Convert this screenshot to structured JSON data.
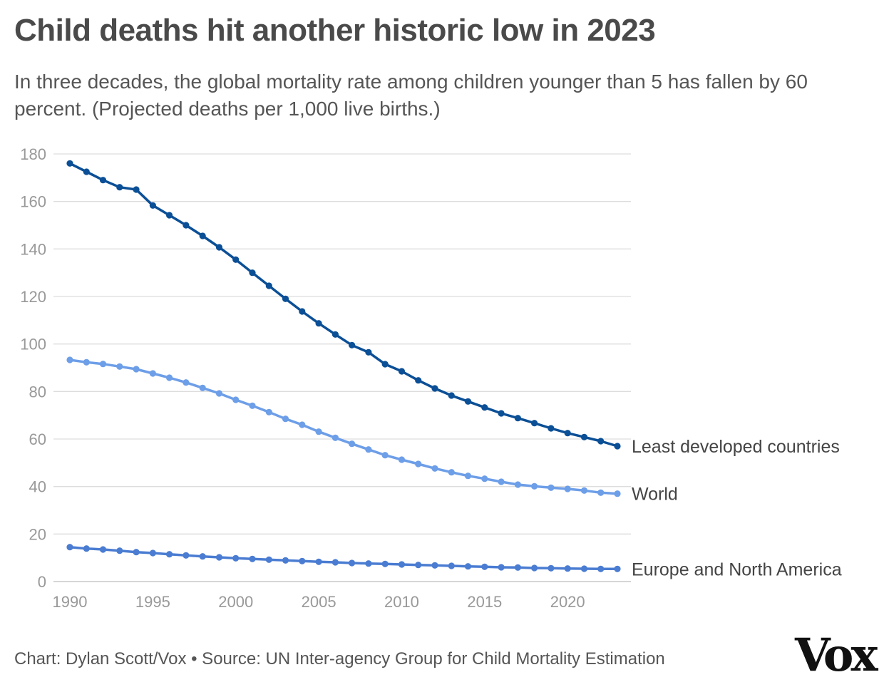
{
  "chart_data": {
    "type": "line",
    "title": "Child deaths hit another historic low in 2023",
    "subtitle": "In three decades, the global mortality rate among children younger than 5 has fallen by 60 percent. (Projected deaths per 1,000 live births.)",
    "xlabel": "",
    "ylabel": "",
    "xlim": [
      1990,
      2023
    ],
    "ylim": [
      0,
      180
    ],
    "grid": true,
    "x_ticks": [
      1990,
      1995,
      2000,
      2005,
      2010,
      2015,
      2020
    ],
    "y_ticks": [
      0,
      20,
      40,
      60,
      80,
      100,
      120,
      140,
      160,
      180
    ],
    "x": [
      1990,
      1991,
      1992,
      1993,
      1994,
      1995,
      1996,
      1997,
      1998,
      1999,
      2000,
      2001,
      2002,
      2003,
      2004,
      2005,
      2006,
      2007,
      2008,
      2009,
      2010,
      2011,
      2012,
      2013,
      2014,
      2015,
      2016,
      2017,
      2018,
      2019,
      2020,
      2021,
      2022,
      2023
    ],
    "series": [
      {
        "name": "Least developed countries",
        "color": "#0b4f96",
        "values": [
          176,
          172.5,
          169,
          166,
          165,
          158.3,
          154.2,
          150,
          145.5,
          140.7,
          135.5,
          130,
          124.5,
          119,
          113.7,
          108.7,
          104,
          99.5,
          96.5,
          91.5,
          88.5,
          84.7,
          81.3,
          78.3,
          75.8,
          73.3,
          70.8,
          68.8,
          66.7,
          64.5,
          62.5,
          60.8,
          59.1,
          57
        ]
      },
      {
        "name": "World",
        "color": "#6d9ee8",
        "values": [
          93.3,
          92.3,
          91.6,
          90.5,
          89.4,
          87.6,
          85.8,
          83.8,
          81.5,
          79.2,
          76.5,
          74,
          71.3,
          68.5,
          66,
          63.1,
          60.5,
          58,
          55.6,
          53.2,
          51.3,
          49.5,
          47.6,
          46,
          44.5,
          43.3,
          42,
          40.8,
          40.1,
          39.5,
          39,
          38.3,
          37.4,
          37
        ]
      },
      {
        "name": "Europe and North America",
        "color": "#4a7cd2",
        "values": [
          14.5,
          13.9,
          13.5,
          13,
          12.4,
          12,
          11.5,
          11,
          10.6,
          10.2,
          9.8,
          9.5,
          9.2,
          8.9,
          8.6,
          8.3,
          8.1,
          7.8,
          7.6,
          7.4,
          7.2,
          7,
          6.8,
          6.6,
          6.4,
          6.2,
          6,
          5.9,
          5.7,
          5.6,
          5.5,
          5.4,
          5.3,
          5.3
        ]
      }
    ]
  },
  "footer": {
    "credit": "Chart: Dylan Scott/Vox • Source: UN Inter-agency Group for Child Mortality Estimation",
    "logo_text": "Vox"
  }
}
